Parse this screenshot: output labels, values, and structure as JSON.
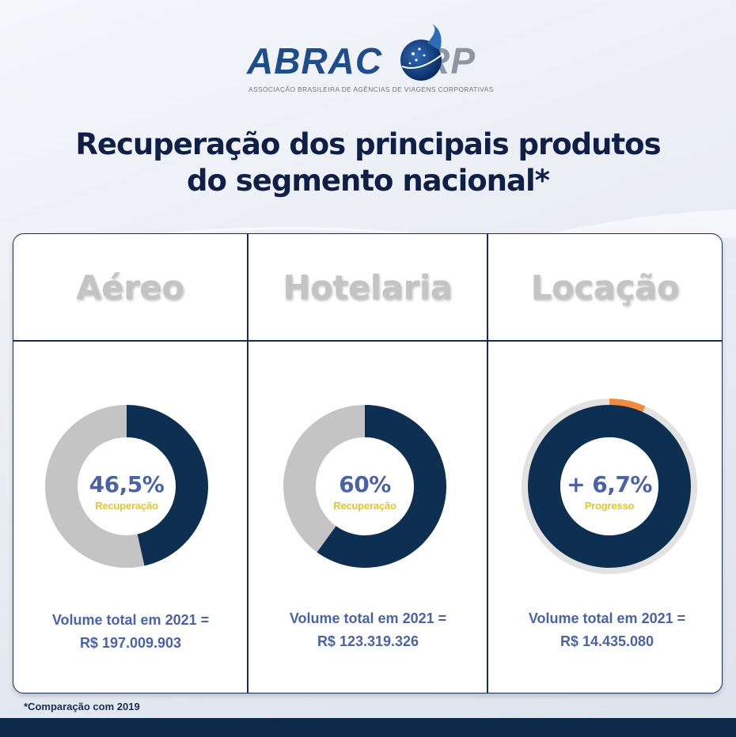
{
  "logo": {
    "main_prefix": "ABRAC",
    "main_suffix": "RP",
    "tagline": "ASSOCIAÇÃO BRASILEIRA DE AGÊNCIAS DE VIAGENS CORPORATIVAS"
  },
  "title": {
    "line1": "Recuperação dos principais produtos",
    "line2": "do segmento nacional*"
  },
  "colors": {
    "primary": "#0d2f52",
    "secondary": "#c4c4c4",
    "accent": "#f08a3c",
    "ring": "#e2e2e2"
  },
  "chart_data": [
    {
      "type": "pie",
      "category": "Aéreo",
      "value_label": "46,5%",
      "caption": "Recuperação",
      "slices": [
        {
          "label": "Recuperação",
          "value": 46.5
        },
        {
          "label": "",
          "value": 53.5
        }
      ],
      "volume_line1": "Volume total em 2021 =",
      "volume_line2": "R$ 197.009.903"
    },
    {
      "type": "pie",
      "category": "Hotelaria",
      "value_label": "60%",
      "caption": "Recuperação",
      "slices": [
        {
          "label": "Recuperação",
          "value": 60
        },
        {
          "label": "",
          "value": 40
        }
      ],
      "volume_line1": "Volume total em 2021 =",
      "volume_line2": "R$ 123.319.326"
    },
    {
      "type": "pie",
      "category": "Locação",
      "value_label": "+ 6,7%",
      "caption": "Progresso",
      "slices": [
        {
          "label": "",
          "value": 100
        }
      ],
      "progress": 6.7,
      "volume_line1": "Volume total em 2021 =",
      "volume_line2": "R$ 14.435.080"
    }
  ],
  "footnote": "*Comparação com 2019"
}
